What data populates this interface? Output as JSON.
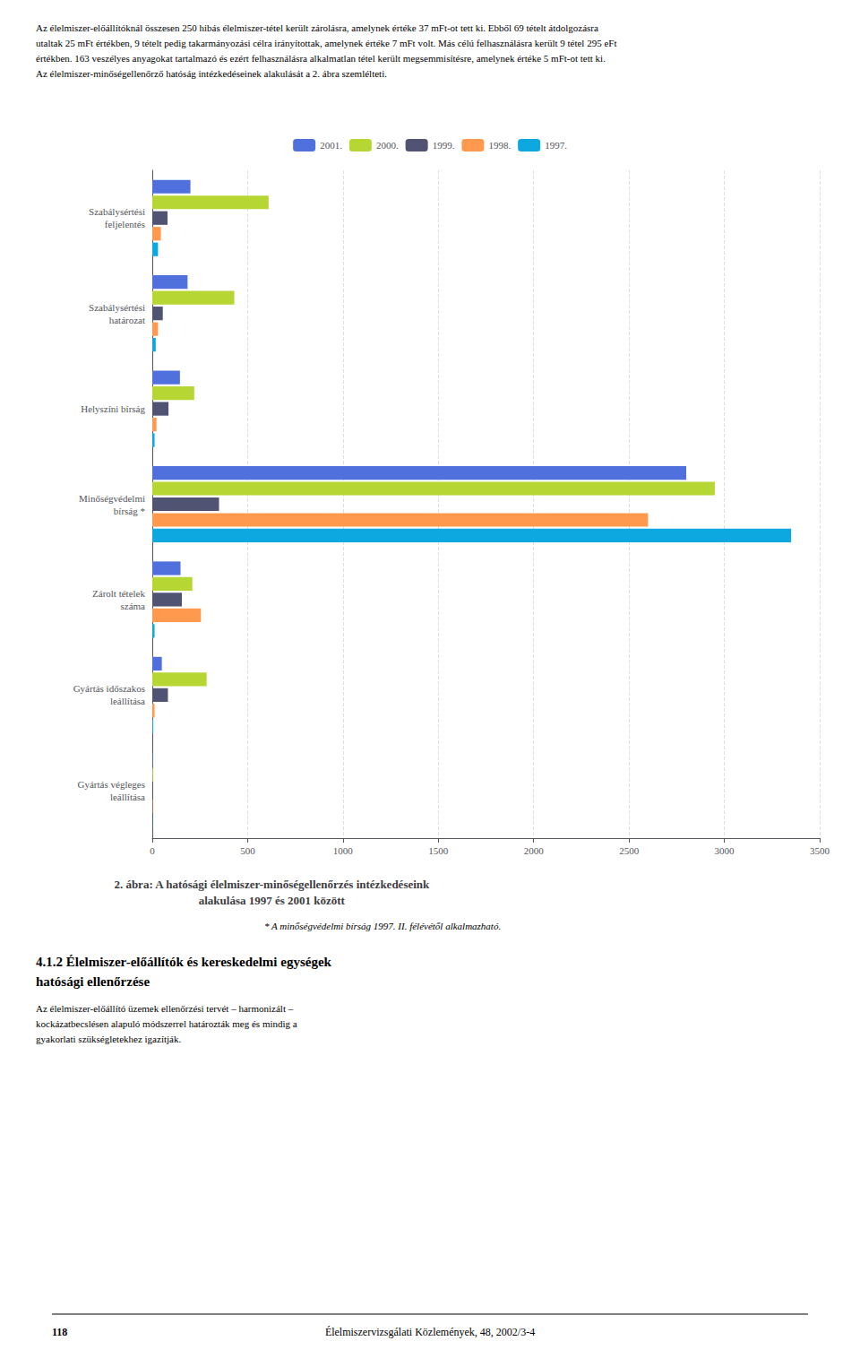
{
  "chart_data": {
    "type": "bar",
    "orientation": "horizontal",
    "title": "2. ábra: A hatósági élelmiszer-minőségellenőrzés intézkedéseink\nalakulása 1997 és 2001 között",
    "categories": [
      "Szabálysértési\nfeljelentés",
      "Szabálysértési\nhatározat",
      "Helyszíni bírság",
      "Minőségvédelmi\nbírság *",
      "Zárolt tételek\nszáma",
      "Gyártás időszakos\nleállítása",
      "Gyártás végleges\nleállítása"
    ],
    "series": [
      {
        "name": "2001.",
        "values": [
          200,
          185,
          145,
          2800,
          148,
          50,
          3
        ]
      },
      {
        "name": "2000.",
        "values": [
          610,
          430,
          220,
          2950,
          210,
          285,
          4
        ]
      },
      {
        "name": "1999.",
        "values": [
          80,
          55,
          85,
          350,
          155,
          82,
          2
        ]
      },
      {
        "name": "1998.",
        "values": [
          45,
          30,
          22,
          2600,
          255,
          12,
          2
        ]
      },
      {
        "name": "1997.",
        "values": [
          30,
          18,
          12,
          3350,
          12,
          5,
          1
        ]
      }
    ],
    "xlim": [
      0,
      3500
    ],
    "xticks": [
      0,
      500,
      1000,
      1500,
      2000,
      2500,
      3000,
      3500
    ],
    "grid": true,
    "legend": "top",
    "annotations": [
      "Az élelmiszer-előállítóknál összesen 250 hibás élelmiszer-tétel került zárolásra, amelynek értéke 37 mFt-ot tett ki. Ebből 69 tételt átdolgozásra\nutaltak 25 mFt értékben, 9 tételt pedig takarmányozási célra irányítottak, amelynek értéke 7 mFt volt. Más célú felhasználásra került 9 tétel 295 eFt\nértékben. 163 veszélyes anyagokat tartalmazó és ezért felhasználásra alkalmatlan tétel került megsemmisítésre, amelynek értéke 5 mFt-ot tett ki.\nAz élelmiszer-minőségellenőrző hatóság intézkedéseinek alakulását a 2. ábra szemlélteti.",
      "* A minőségvédelmi bírság 1997. II. félévétől alkalmazható.",
      "4.1.2 Élelmiszer-előállítók és kereskedelmi egységek\nhatósági ellenőrzése",
      "Az élelmiszer-előállító üzemek ellenőrzési tervét – harmonizált –\nkockázatbecslésen alapuló módszerrel határozták meg és mindig a\ngyakorlati szükségletekhez igazítják.",
      "118",
      "Élelmiszervizsgálati Közlemények, 48, 2002/3-4"
    ]
  }
}
